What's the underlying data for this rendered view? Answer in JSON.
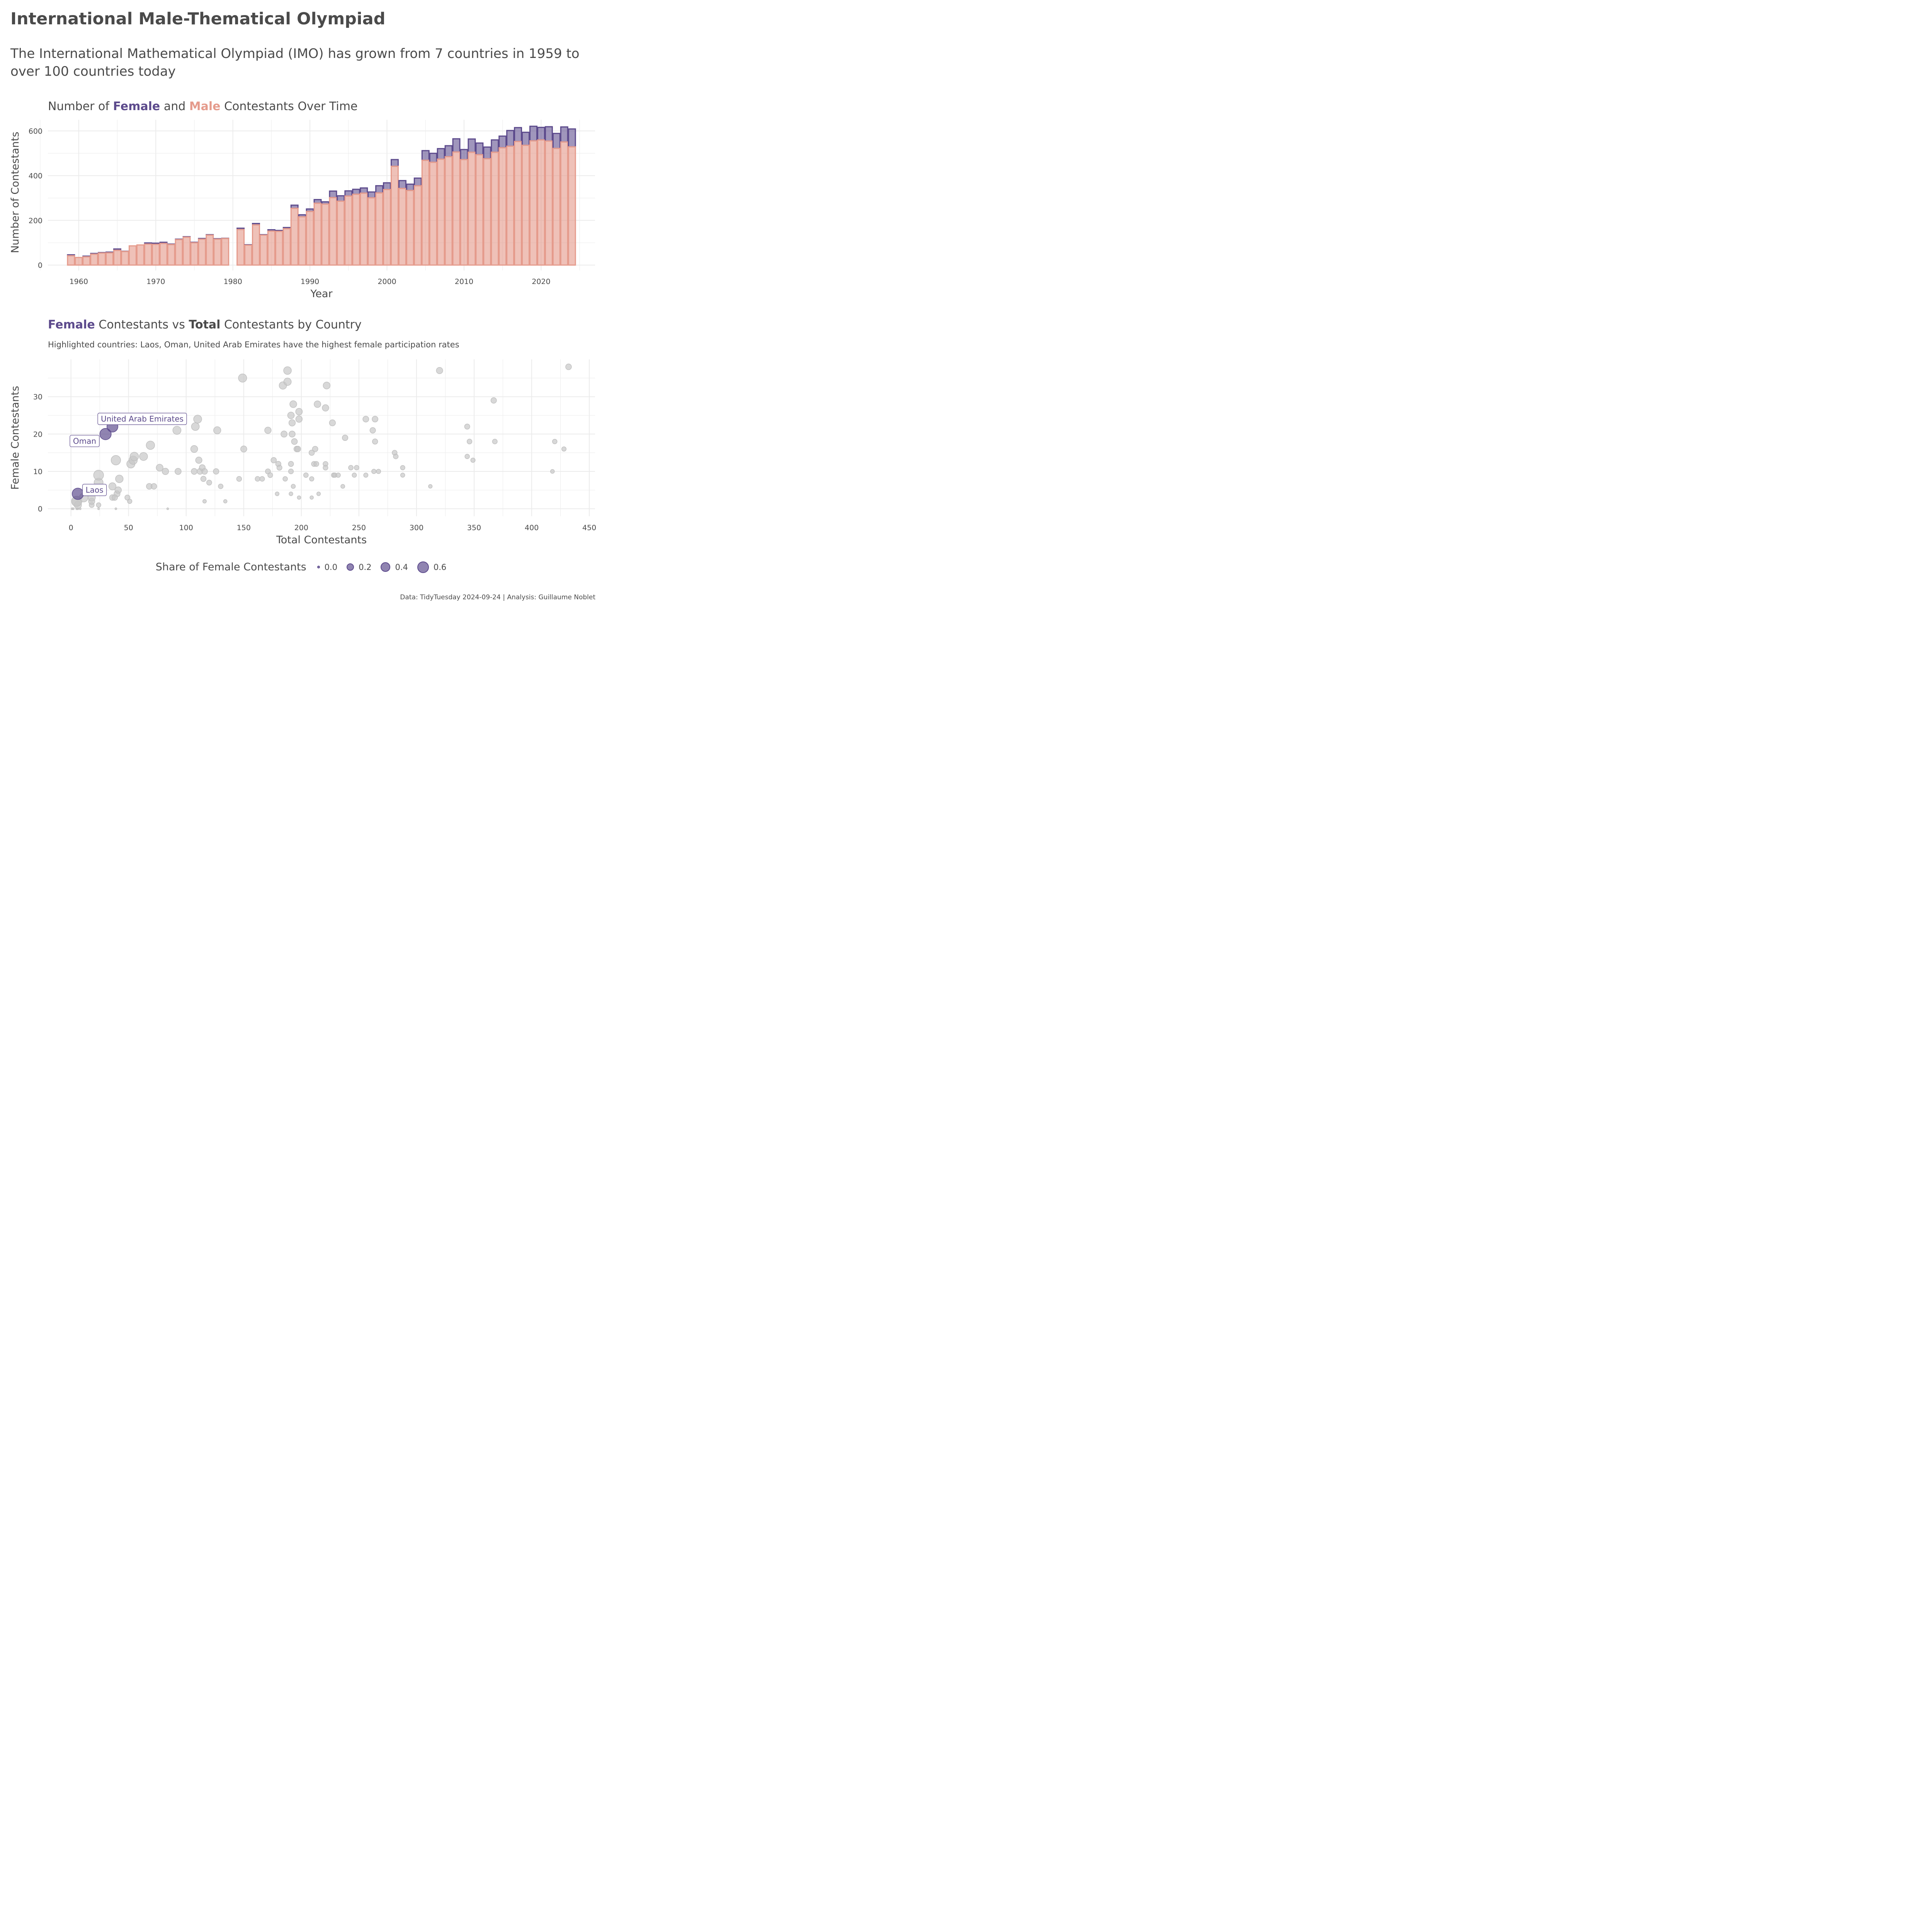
{
  "title": "International Male-Thematical Olympiad",
  "subtitle": "The International Mathematical Olympiad (IMO) has grown from 7 countries in 1959 to over 100 countries today",
  "caption": "Data: TidyTuesday 2024-09-24 | Analysis: Guillaume Noblet",
  "colors": {
    "female": "#5c4a8c",
    "male": "#e59b8c",
    "other_points": "#cccccc",
    "text": "#4a4a4a",
    "grid": "#ebebeb"
  },
  "bar_panel": {
    "title_parts": [
      "Number of ",
      "Female",
      " and ",
      "Male",
      " Contestants Over Time"
    ]
  },
  "scatter_panel": {
    "title_parts": [
      "Female",
      " Contestants vs ",
      "Total",
      " Contestants by Country"
    ],
    "subtitle": "Highlighted countries: Laos, Oman, United Arab Emirates have the highest female participation rates"
  },
  "legend": {
    "title": "Share of Female Contestants",
    "items": [
      {
        "label": "0.0",
        "value": 0.0
      },
      {
        "label": "0.2",
        "value": 0.2
      },
      {
        "label": "0.4",
        "value": 0.4
      },
      {
        "label": "0.6",
        "value": 0.6
      }
    ]
  },
  "chart_data": [
    {
      "type": "bar",
      "title": "Number of Female and Male Contestants Over Time",
      "xlabel": "Year",
      "ylabel": "Number of Contestants",
      "xlim": [
        1956,
        2027
      ],
      "ylim": [
        0,
        650
      ],
      "xticks": [
        1960,
        1970,
        1980,
        1990,
        2000,
        2010,
        2020
      ],
      "yticks": [
        0,
        200,
        400,
        600
      ],
      "grid": true,
      "stacked": true,
      "categories": [
        1959,
        1960,
        1961,
        1962,
        1963,
        1964,
        1965,
        1966,
        1967,
        1968,
        1969,
        1970,
        1971,
        1972,
        1973,
        1974,
        1975,
        1976,
        1977,
        1978,
        1979,
        1981,
        1982,
        1983,
        1984,
        1985,
        1986,
        1987,
        1988,
        1989,
        1990,
        1991,
        1992,
        1993,
        1994,
        1995,
        1996,
        1997,
        1998,
        1999,
        2000,
        2001,
        2002,
        2003,
        2004,
        2005,
        2006,
        2007,
        2008,
        2009,
        2010,
        2011,
        2012,
        2013,
        2014,
        2015,
        2016,
        2017,
        2018,
        2019,
        2020,
        2021,
        2022,
        2023,
        2024
      ],
      "series": [
        {
          "name": "Male",
          "values": [
            42,
            34,
            37,
            49,
            54,
            55,
            66,
            61,
            86,
            90,
            94,
            93,
            97,
            92,
            114,
            125,
            100,
            116,
            134,
            116,
            119,
            159,
            89,
            180,
            134,
            152,
            151,
            163,
            254,
            216,
            240,
            277,
            273,
            302,
            286,
            309,
            317,
            322,
            301,
            323,
            338,
            442,
            343,
            334,
            355,
            469,
            460,
            474,
            485,
            506,
            472,
            505,
            494,
            476,
            505,
            525,
            532,
            553,
            536,
            556,
            560,
            555,
            522,
            551,
            529
          ]
        },
        {
          "name": "Female",
          "values": [
            4,
            0,
            3,
            3,
            2,
            3,
            6,
            1,
            0,
            0,
            5,
            5,
            5,
            2,
            2,
            2,
            2,
            3,
            2,
            2,
            1,
            6,
            2,
            6,
            2,
            6,
            4,
            5,
            14,
            9,
            11,
            16,
            10,
            29,
            24,
            23,
            22,
            23,
            26,
            32,
            30,
            30,
            35,
            28,
            34,
            43,
            40,
            47,
            49,
            59,
            45,
            59,
            52,
            52,
            55,
            52,
            70,
            62,
            58,
            65,
            56,
            64,
            67,
            67,
            80
          ]
        }
      ]
    },
    {
      "type": "scatter",
      "title": "Female Contestants vs Total Contestants by Country",
      "subtitle": "Highlighted countries: Laos, Oman, United Arab Emirates have the highest female participation rates",
      "xlabel": "Total Contestants",
      "ylabel": "Female Contestants",
      "xlim": [
        -20,
        455
      ],
      "ylim": [
        -2,
        40
      ],
      "xticks": [
        0,
        50,
        100,
        150,
        200,
        250,
        300,
        350,
        400,
        450
      ],
      "yticks": [
        0,
        10,
        20,
        30
      ],
      "grid": true,
      "size_legend": "Share of Female Contestants",
      "highlighted": [
        {
          "label": "Laos",
          "x": 6,
          "y": 4
        },
        {
          "label": "Oman",
          "x": 30,
          "y": 20
        },
        {
          "label": "United Arab Emirates",
          "x": 36,
          "y": 22
        }
      ],
      "points": [
        [
          1,
          0
        ],
        [
          2,
          0
        ],
        [
          5,
          0
        ],
        [
          6,
          0
        ],
        [
          8,
          0
        ],
        [
          24,
          0
        ],
        [
          39,
          0
        ],
        [
          84,
          0
        ],
        [
          5,
          2
        ],
        [
          6,
          1
        ],
        [
          5,
          2
        ],
        [
          11,
          3
        ],
        [
          18,
          1
        ],
        [
          18,
          2
        ],
        [
          18,
          3
        ],
        [
          24,
          1
        ],
        [
          24,
          7
        ],
        [
          24,
          9
        ],
        [
          36,
          3
        ],
        [
          36,
          6
        ],
        [
          40,
          4
        ],
        [
          41,
          5
        ],
        [
          42,
          8
        ],
        [
          38,
          3
        ],
        [
          49,
          3
        ],
        [
          51,
          2
        ],
        [
          52,
          12
        ],
        [
          54,
          13
        ],
        [
          55,
          14
        ],
        [
          39,
          13
        ],
        [
          63,
          14
        ],
        [
          68,
          6
        ],
        [
          69,
          17
        ],
        [
          72,
          6
        ],
        [
          77,
          11
        ],
        [
          82,
          10
        ],
        [
          92,
          21
        ],
        [
          93,
          10
        ],
        [
          107,
          10
        ],
        [
          107,
          16
        ],
        [
          108,
          22
        ],
        [
          110,
          24
        ],
        [
          111,
          13
        ],
        [
          112,
          10
        ],
        [
          114,
          11
        ],
        [
          115,
          8
        ],
        [
          116,
          10
        ],
        [
          116,
          2
        ],
        [
          120,
          7
        ],
        [
          126,
          10
        ],
        [
          127,
          21
        ],
        [
          130,
          6
        ],
        [
          134,
          2
        ],
        [
          146,
          8
        ],
        [
          149,
          35
        ],
        [
          150,
          16
        ],
        [
          162,
          8
        ],
        [
          166,
          8
        ],
        [
          171,
          10
        ],
        [
          171,
          21
        ],
        [
          173,
          9
        ],
        [
          176,
          13
        ],
        [
          179,
          4
        ],
        [
          180,
          12
        ],
        [
          181,
          11
        ],
        [
          184,
          33
        ],
        [
          185,
          20
        ],
        [
          186,
          8
        ],
        [
          188,
          37
        ],
        [
          188,
          34
        ],
        [
          191,
          25
        ],
        [
          191,
          12
        ],
        [
          191,
          10
        ],
        [
          191,
          4
        ],
        [
          192,
          23
        ],
        [
          192,
          20
        ],
        [
          193,
          6
        ],
        [
          193,
          28
        ],
        [
          194,
          18
        ],
        [
          196,
          16
        ],
        [
          197,
          16
        ],
        [
          198,
          24
        ],
        [
          198,
          26
        ],
        [
          198,
          3
        ],
        [
          204,
          9
        ],
        [
          209,
          15
        ],
        [
          209,
          8
        ],
        [
          209,
          3
        ],
        [
          211,
          12
        ],
        [
          212,
          16
        ],
        [
          213,
          12
        ],
        [
          214,
          28
        ],
        [
          215,
          4
        ],
        [
          221,
          27
        ],
        [
          221,
          12
        ],
        [
          221,
          11
        ],
        [
          222,
          33
        ],
        [
          227,
          23
        ],
        [
          228,
          9
        ],
        [
          229,
          9
        ],
        [
          232,
          9
        ],
        [
          236,
          6
        ],
        [
          238,
          19
        ],
        [
          243,
          11
        ],
        [
          246,
          9
        ],
        [
          248,
          11
        ],
        [
          256,
          9
        ],
        [
          256,
          24
        ],
        [
          262,
          21
        ],
        [
          263,
          10
        ],
        [
          264,
          24
        ],
        [
          264,
          18
        ],
        [
          267,
          10
        ],
        [
          281,
          15
        ],
        [
          282,
          14
        ],
        [
          288,
          11
        ],
        [
          288,
          9
        ],
        [
          312,
          6
        ],
        [
          320,
          37
        ],
        [
          344,
          22
        ],
        [
          344,
          14
        ],
        [
          346,
          18
        ],
        [
          349,
          13
        ],
        [
          367,
          29
        ],
        [
          368,
          18
        ],
        [
          418,
          10
        ],
        [
          420,
          18
        ],
        [
          428,
          16
        ],
        [
          432,
          38
        ]
      ]
    }
  ]
}
